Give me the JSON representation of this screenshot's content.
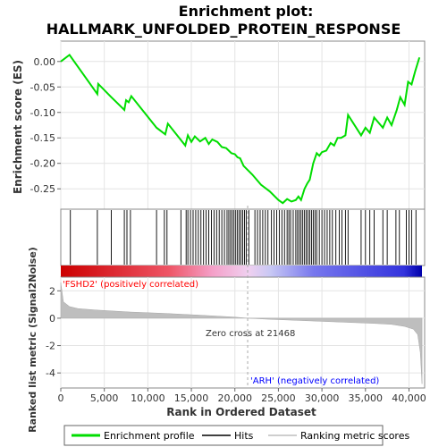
{
  "chart_data": {
    "type": "line",
    "title_line1": "Enrichment plot:",
    "title_line2": "HALLMARK_UNFOLDED_PROTEIN_RESPONSE",
    "es_axis": {
      "label": "Enrichment score (ES)",
      "ylim": [
        -0.29,
        0.04
      ],
      "ticks": [
        "0.00",
        "-0.05",
        "-0.10",
        "-0.15",
        "-0.20",
        "-0.25"
      ],
      "tick_values": [
        0.0,
        -0.05,
        -0.1,
        -0.15,
        -0.2,
        -0.25
      ]
    },
    "ranked_axis": {
      "label": "Ranked list metric (Signal2Noise)",
      "ylim": [
        -5.1,
        3.0
      ],
      "ticks": [
        "2",
        "0",
        "-2",
        "-4"
      ],
      "tick_values": [
        2,
        0,
        -2,
        -4
      ]
    },
    "x_axis": {
      "label": "Rank in Ordered Dataset",
      "xlim": [
        0,
        41800
      ],
      "ticks": [
        "0",
        "5,000",
        "10,000",
        "15,000",
        "20,000",
        "25,000",
        "30,000",
        "35,000",
        "40,000"
      ],
      "tick_values": [
        0,
        5000,
        10000,
        15000,
        20000,
        25000,
        30000,
        35000,
        40000
      ]
    },
    "zero_cross_label": "Zero cross at 21468",
    "zero_cross": 21468,
    "positive_label": "'FSHD2' (positively correlated)",
    "negative_label": "'ARH' (negatively correlated)",
    "legend": [
      "Enrichment profile",
      "Hits",
      "Ranking metric scores"
    ],
    "colors": {
      "enrichment_line": "#00dd00",
      "hits": "#000000",
      "ranking_fill": "#bebebe",
      "positive_text": "#ff0000",
      "negative_text": "#0000ff"
    },
    "series": [
      {
        "name": "Enrichment profile",
        "x": [
          0,
          1000,
          4200,
          4300,
          5800,
          7300,
          7500,
          7800,
          8100,
          11000,
          12000,
          12300,
          14300,
          14600,
          15000,
          15400,
          16000,
          16600,
          17000,
          17400,
          18000,
          18500,
          19000,
          19300,
          19600,
          20000,
          20300,
          20600,
          21000,
          22000,
          23000,
          24000,
          25000,
          25500,
          26000,
          26500,
          27000,
          27300,
          27600,
          28000,
          28300,
          28600,
          29000,
          29400,
          29700,
          30000,
          30500,
          31000,
          31400,
          31800,
          32200,
          32700,
          33000,
          34500,
          35000,
          35500,
          36000,
          37000,
          37500,
          38000,
          38600,
          39000,
          39500,
          39900,
          40300,
          40700,
          41200
        ],
        "y": [
          0.0,
          0.013,
          -0.064,
          -0.044,
          -0.07,
          -0.095,
          -0.076,
          -0.08,
          -0.068,
          -0.13,
          -0.143,
          -0.122,
          -0.165,
          -0.145,
          -0.158,
          -0.147,
          -0.157,
          -0.15,
          -0.162,
          -0.153,
          -0.158,
          -0.168,
          -0.17,
          -0.175,
          -0.18,
          -0.182,
          -0.188,
          -0.19,
          -0.205,
          -0.222,
          -0.242,
          -0.255,
          -0.272,
          -0.278,
          -0.27,
          -0.275,
          -0.272,
          -0.265,
          -0.272,
          -0.25,
          -0.24,
          -0.232,
          -0.2,
          -0.18,
          -0.185,
          -0.178,
          -0.175,
          -0.16,
          -0.165,
          -0.15,
          -0.15,
          -0.145,
          -0.105,
          -0.145,
          -0.13,
          -0.14,
          -0.11,
          -0.13,
          -0.11,
          -0.125,
          -0.095,
          -0.07,
          -0.085,
          -0.04,
          -0.045,
          -0.02,
          0.008
        ]
      },
      {
        "name": "Ranking metric scores",
        "x": [
          0,
          300,
          1000,
          2000,
          4000,
          8000,
          12000,
          16000,
          20000,
          21468,
          24000,
          28000,
          32000,
          36000,
          38000,
          39500,
          40500,
          41000,
          41300,
          41500
        ],
        "y": [
          2.6,
          1.2,
          0.85,
          0.7,
          0.6,
          0.45,
          0.35,
          0.22,
          0.08,
          0.0,
          -0.08,
          -0.18,
          -0.28,
          -0.38,
          -0.45,
          -0.6,
          -0.8,
          -1.2,
          -2.5,
          -4.8
        ]
      }
    ],
    "hits_x": [
      1100,
      4200,
      5800,
      7300,
      7600,
      8000,
      11000,
      11900,
      12200,
      13800,
      14400,
      14600,
      14900,
      15200,
      15500,
      15800,
      16100,
      16400,
      16700,
      17000,
      17300,
      17600,
      17900,
      18200,
      18500,
      18800,
      19100,
      19300,
      19500,
      19700,
      19900,
      20100,
      20300,
      20500,
      20700,
      20900,
      21100,
      21300,
      21600,
      22300,
      22600,
      22900,
      23200,
      23500,
      23800,
      24200,
      24500,
      24800,
      25100,
      25400,
      25700,
      26000,
      26200,
      26400,
      26700,
      27000,
      27200,
      27400,
      27600,
      27800,
      28000,
      28200,
      28400,
      28600,
      28800,
      29000,
      29200,
      29400,
      29700,
      30000,
      30300,
      30600,
      30900,
      31200,
      31600,
      32000,
      32300,
      32700,
      33000,
      34500,
      35000,
      35500,
      36000,
      37000,
      37500,
      38500,
      38900,
      39700,
      40000,
      40300,
      40800
    ]
  }
}
